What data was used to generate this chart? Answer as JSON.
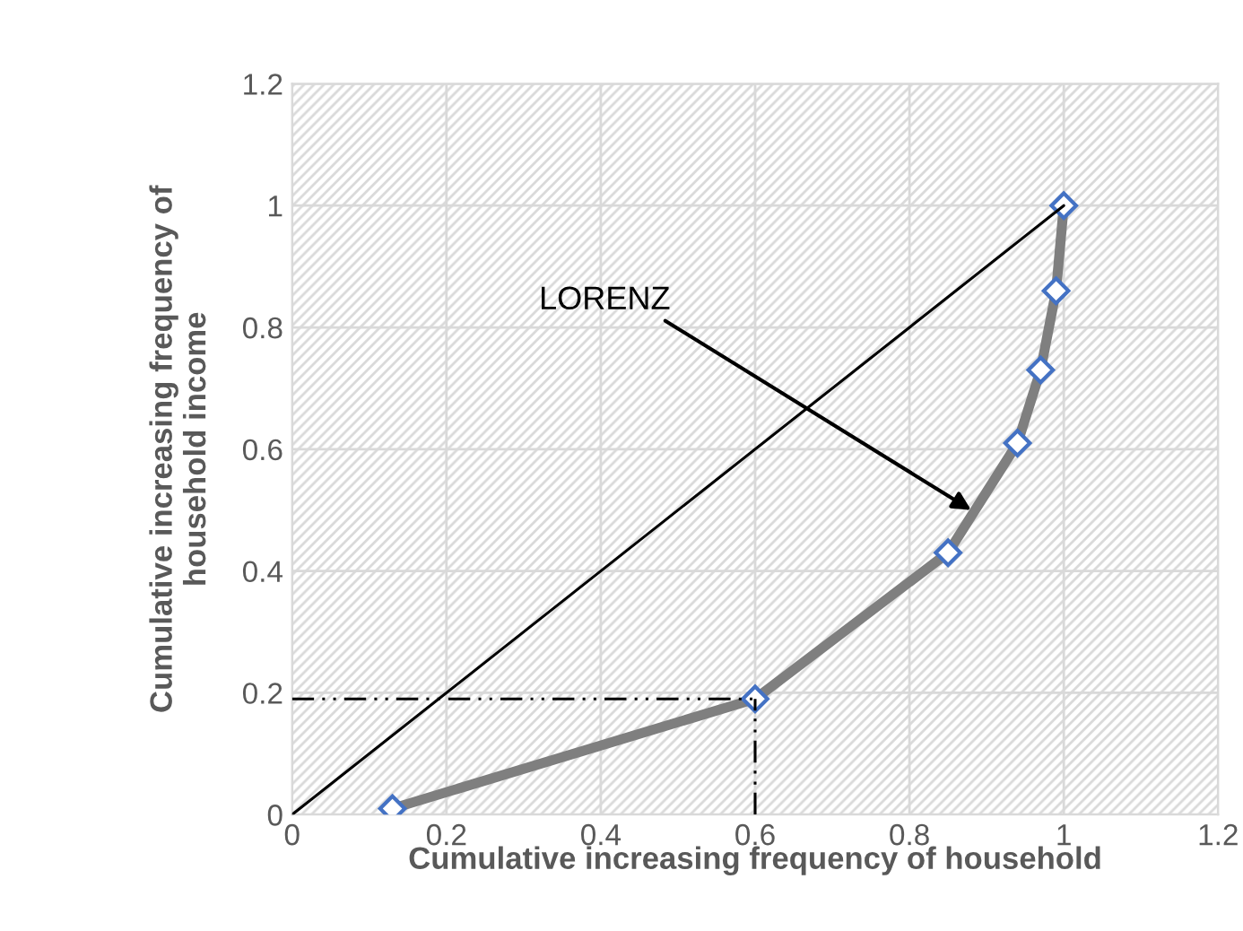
{
  "chart_data": {
    "type": "line",
    "xlabel": "Cumulative increasing frequency of household",
    "ylabel": "Cumulative increasing frequency of\nhousehold income",
    "series": [
      {
        "x": [
          0.13,
          0.6,
          0.85,
          0.94,
          0.97,
          0.99,
          1.0
        ],
        "values": [
          0.01,
          0.19,
          0.43,
          0.61,
          0.73,
          0.86,
          1.0
        ],
        "color": "#7f7f7f",
        "marker": "diamond",
        "line_style": "solid"
      },
      {
        "x": [
          0,
          1
        ],
        "values": [
          0,
          1
        ],
        "color": "#000000",
        "marker": "none",
        "line_style": "solid"
      },
      {
        "x": [
          0,
          0.6
        ],
        "values": [
          0.19,
          0.19
        ],
        "color": "#000000",
        "marker": "none",
        "line_style": "dashed"
      },
      {
        "x": [
          0.6,
          0.6
        ],
        "values": [
          0,
          0.19
        ],
        "color": "#000000",
        "marker": "none",
        "line_style": "dashed"
      }
    ],
    "annotations": [
      {
        "text": "LORENZ",
        "x": 0.88,
        "y": 0.5
      }
    ],
    "xlim": [
      0,
      1.2
    ],
    "ylim": [
      0,
      1.2
    ],
    "xticks": [
      0,
      0.2,
      0.4,
      0.6,
      0.8,
      1,
      1.2
    ],
    "yticks": [
      0,
      0.2,
      0.4,
      0.6,
      0.8,
      1,
      1.2
    ],
    "grid": true,
    "legend": false
  }
}
